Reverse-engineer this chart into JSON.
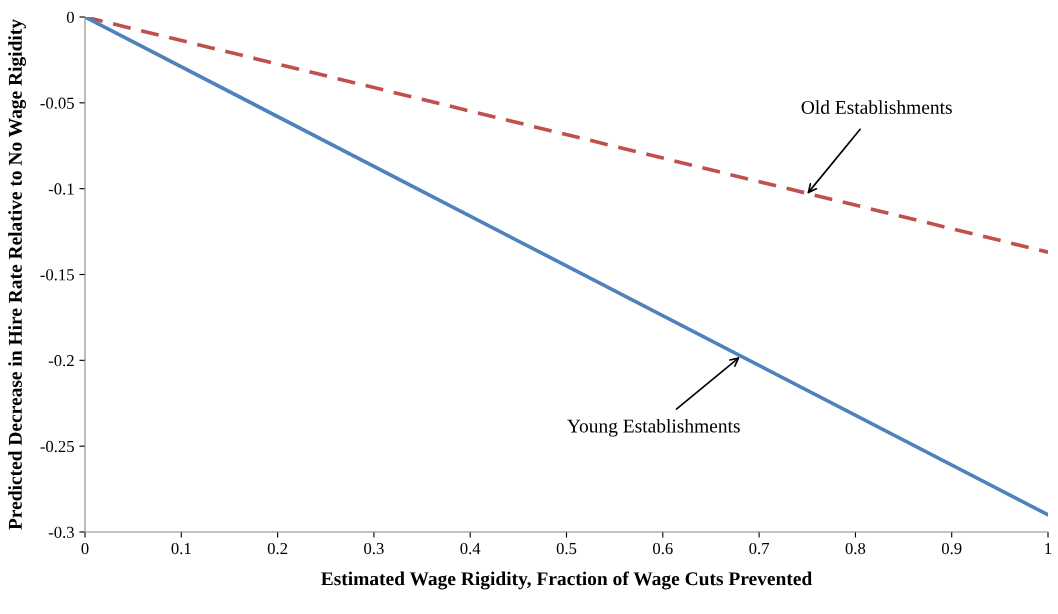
{
  "chart_data": {
    "type": "line",
    "xlabel": "Estimated Wage Rigidity, Fraction of Wage Cuts Prevented",
    "ylabel": "Predicted Decrease in Hire Rate Relative to No Wage Rigidity",
    "x": [
      0,
      1
    ],
    "series": [
      {
        "color": "#c0504d",
        "line_style": "dashed",
        "values": [
          0,
          -0.137
        ]
      },
      {
        "color": "#4f81bd",
        "line_style": "solid",
        "values": [
          0,
          -0.29
        ]
      }
    ],
    "annotations": [
      {
        "text": "Old Establishments",
        "x": 0.75,
        "y": -0.103
      },
      {
        "text": "Young Establishments",
        "x": 0.68,
        "y": -0.198
      }
    ],
    "xlim": [
      0,
      1
    ],
    "ylim": [
      -0.3,
      0
    ],
    "xticks": [
      0,
      0.1,
      0.2,
      0.3,
      0.4,
      0.5,
      0.6,
      0.7,
      0.8,
      0.9,
      1
    ],
    "yticks": [
      -0.3,
      -0.25,
      -0.2,
      -0.15,
      -0.1,
      -0.05,
      0
    ],
    "grid": false,
    "legend": false,
    "marker": "none"
  }
}
